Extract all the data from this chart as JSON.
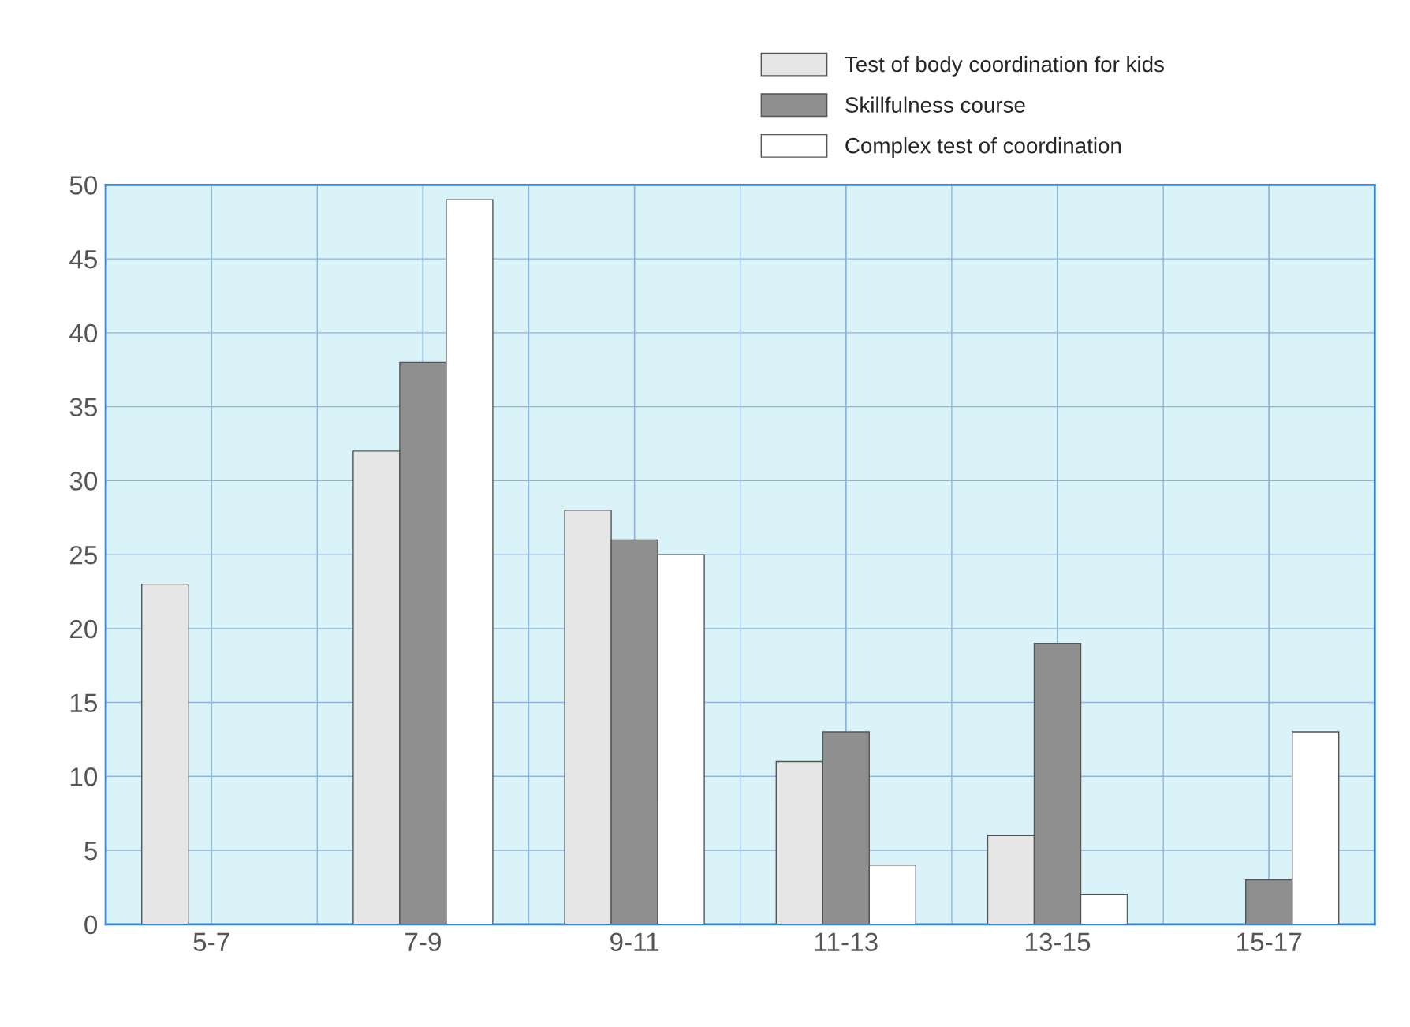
{
  "chart_data": {
    "type": "bar",
    "categories": [
      "5-7",
      "7-9",
      "9-11",
      "11-13",
      "13-15",
      "15-17"
    ],
    "series": [
      {
        "name": "Test of body coordination for kids",
        "color": "#e6e6e6",
        "values": [
          23,
          32,
          28,
          11,
          6,
          null
        ]
      },
      {
        "name": "Skillfulness course",
        "color": "#8f8f8f",
        "values": [
          null,
          38,
          26,
          13,
          19,
          3
        ]
      },
      {
        "name": "Complex test of coordination",
        "color": "#ffffff",
        "values": [
          null,
          49,
          25,
          4,
          2,
          13
        ]
      }
    ],
    "ylim": [
      0,
      50
    ],
    "yticks": [
      0,
      5,
      10,
      15,
      20,
      25,
      30,
      35,
      40,
      45,
      50
    ],
    "grid": true,
    "legend": "top right"
  }
}
